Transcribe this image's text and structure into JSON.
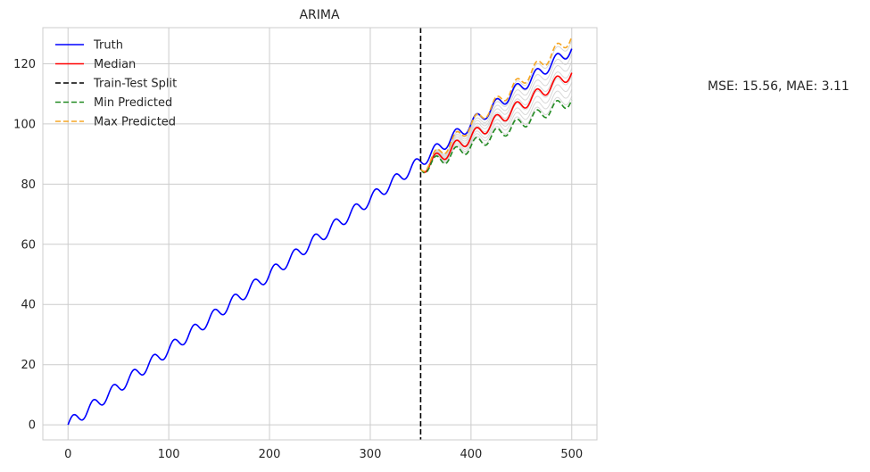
{
  "chart_data": {
    "type": "line",
    "title": "ARIMA",
    "xlabel": "",
    "ylabel": "",
    "xlim": [
      -25,
      525
    ],
    "ylim": [
      -5,
      132
    ],
    "xticks": [
      0,
      100,
      200,
      300,
      400,
      500
    ],
    "yticks": [
      0,
      20,
      40,
      60,
      80,
      100,
      120
    ],
    "grid": true,
    "legend_position": "top-left",
    "annotation": "MSE: 15.56, MAE: 3.11",
    "split_x": 350,
    "truth": {
      "name": "Truth",
      "color": "#0000ff",
      "trend_start": 0,
      "trend_end": 125,
      "seasonal_amplitude": 2,
      "seasonal_period": 20,
      "x_range": [
        0,
        500
      ]
    },
    "median": {
      "name": "Median",
      "color": "#ff0000",
      "x_range": [
        350,
        500
      ],
      "start_value": 85,
      "end_value": 117
    },
    "split_line": {
      "name": "Train-Test Split",
      "color": "#000000"
    },
    "min_predicted": {
      "name": "Min Predicted",
      "color": "#228b22",
      "x_range": [
        350,
        500
      ],
      "start_value": 85,
      "end_value": 108
    },
    "max_predicted": {
      "name": "Max Predicted",
      "color": "#f5a623",
      "x_range": [
        350,
        500
      ],
      "start_value": 85,
      "end_value": 129
    },
    "ensemble_color": "#c8c8c8",
    "ensemble_count": 9
  }
}
